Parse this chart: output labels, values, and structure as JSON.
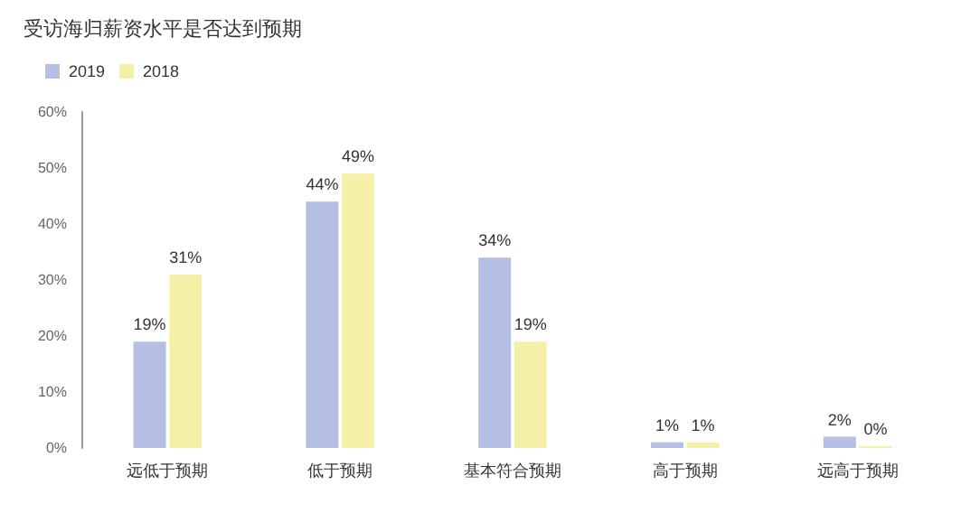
{
  "chart_data": {
    "type": "bar",
    "title": "受访海归薪资水平是否达到预期",
    "categories": [
      "远低于预期",
      "低于预期",
      "基本符合预期",
      "高于预期",
      "远高于预期"
    ],
    "series": [
      {
        "name": "2019",
        "color": "#b4bfe3",
        "values": [
          19,
          44,
          34,
          1,
          2
        ],
        "value_labels": [
          "19%",
          "44%",
          "34%",
          "1%",
          "2%"
        ]
      },
      {
        "name": "2018",
        "color": "#f5f0a8",
        "values": [
          31,
          49,
          19,
          1,
          0
        ],
        "value_labels": [
          "31%",
          "49%",
          "19%",
          "1%",
          "0%"
        ]
      }
    ],
    "ylim": [
      0,
      60
    ],
    "yticks": [
      {
        "value": 0,
        "label": "0%"
      },
      {
        "value": 10,
        "label": "10%"
      },
      {
        "value": 20,
        "label": "20%"
      },
      {
        "value": 30,
        "label": "30%"
      },
      {
        "value": 40,
        "label": "40%"
      },
      {
        "value": 50,
        "label": "50%"
      },
      {
        "value": 60,
        "label": "60%"
      }
    ],
    "grid": false,
    "legend": "top left"
  }
}
